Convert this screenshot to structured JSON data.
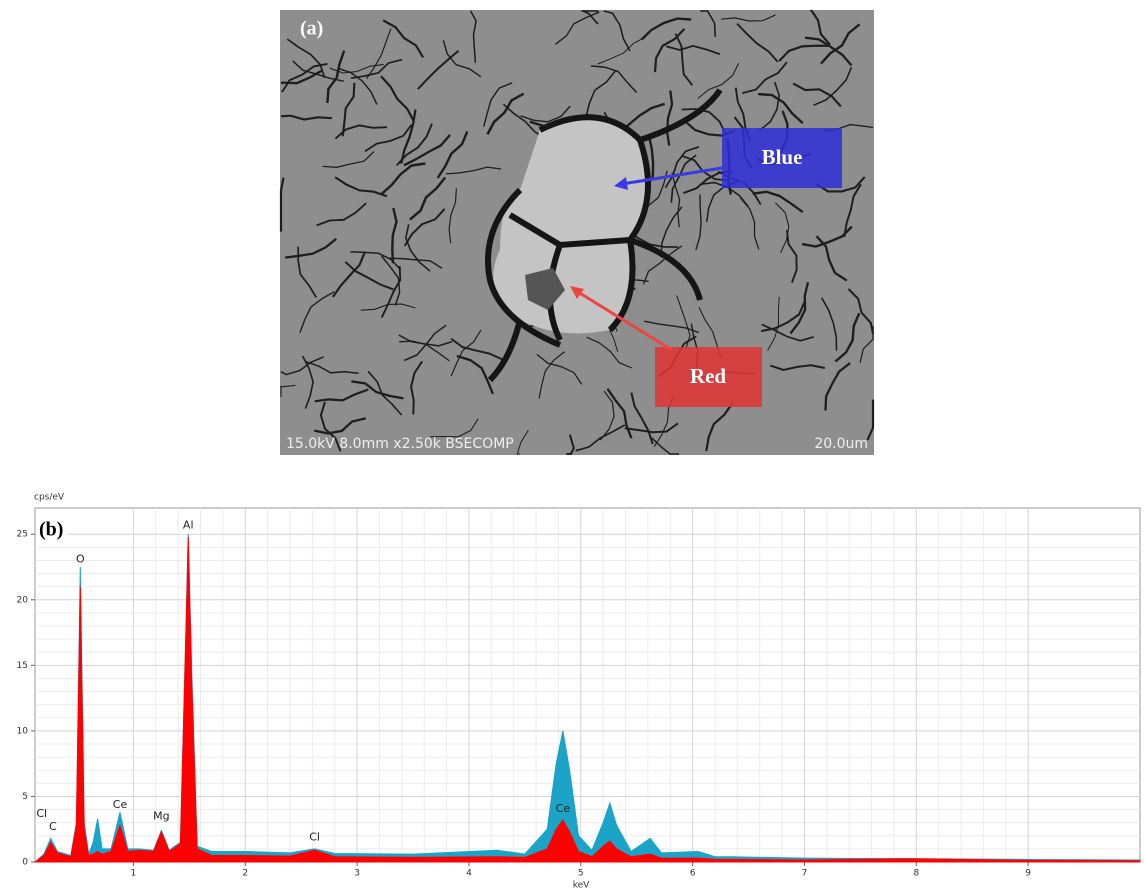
{
  "image_panel": {
    "label": "(a)",
    "caption": "15.0kV 8.0mm x2.50k BSECOMP",
    "scale_bar": "20.0um",
    "regions": [
      {
        "name": "Blue",
        "color": "#2e2ed8"
      },
      {
        "name": "Red",
        "color": "#e23232"
      }
    ]
  },
  "chart_data": {
    "type": "area",
    "panel_label": "(b)",
    "y_label": "cps/eV",
    "x_label": "keV",
    "x": [
      0.12,
      0.2,
      0.26,
      0.32,
      0.44,
      0.49,
      0.525,
      0.56,
      0.6,
      0.64,
      0.68,
      0.72,
      0.8,
      0.88,
      0.95,
      1.05,
      1.18,
      1.25,
      1.32,
      1.42,
      1.47,
      1.49,
      1.52,
      1.57,
      1.7,
      2,
      2.4,
      2.62,
      2.8,
      3.5,
      4.25,
      4.5,
      4.7,
      4.78,
      4.84,
      4.9,
      4.98,
      5.1,
      5.2,
      5.26,
      5.32,
      5.45,
      5.62,
      5.72,
      6.05,
      6.2,
      6.35,
      7,
      8,
      9,
      10
    ],
    "series": [
      {
        "color": "#1ba3c8",
        "values": [
          0,
          0.6,
          1.8,
          0.8,
          0.5,
          3,
          22.5,
          3,
          0.6,
          1.5,
          3.3,
          1,
          1,
          3.8,
          1,
          1,
          0.9,
          2.4,
          0.9,
          1.5,
          18,
          25,
          15,
          1.2,
          0.8,
          0.8,
          0.7,
          1,
          0.65,
          0.6,
          0.9,
          0.6,
          2.5,
          7.5,
          10,
          7,
          2,
          0.9,
          3,
          4.5,
          2.8,
          0.8,
          1.8,
          0.7,
          0.8,
          0.4,
          0.4,
          0.3,
          0.25,
          0.2,
          0.15
        ]
      },
      {
        "color": "#ff0000",
        "values": [
          0,
          0.5,
          1.5,
          0.7,
          0.4,
          2.8,
          21,
          2.5,
          0.5,
          0.6,
          0.8,
          0.6,
          0.8,
          2.8,
          0.8,
          0.9,
          0.8,
          2.3,
          0.8,
          1.4,
          17.5,
          24.8,
          14,
          1,
          0.5,
          0.5,
          0.45,
          0.9,
          0.4,
          0.35,
          0.4,
          0.35,
          1,
          2.5,
          3.2,
          2.3,
          0.8,
          0.4,
          1.2,
          1.6,
          1,
          0.4,
          0.6,
          0.3,
          0.3,
          0.2,
          0.2,
          0.15,
          0.25,
          0.12,
          0.1
        ]
      }
    ],
    "annotations": [
      {
        "text": "Cl",
        "x": 0.18,
        "y": 3.2
      },
      {
        "text": "C",
        "x": 0.28,
        "y": 2.2
      },
      {
        "text": "O",
        "x": 0.525,
        "y": 22.6
      },
      {
        "text": "Ce",
        "x": 0.88,
        "y": 3.9
      },
      {
        "text": "Mg",
        "x": 1.25,
        "y": 3.0
      },
      {
        "text": "Al",
        "x": 1.49,
        "y": 25.2
      },
      {
        "text": "Cl",
        "x": 2.62,
        "y": 1.4
      },
      {
        "text": "Ce",
        "x": 4.84,
        "y": 3.6
      }
    ],
    "xlim": [
      0.12,
      10
    ],
    "ylim": [
      0,
      27
    ],
    "xticks": [
      1,
      2,
      3,
      4,
      5,
      6,
      7,
      8,
      9
    ],
    "yticks": [
      0,
      5,
      10,
      15,
      20,
      25
    ],
    "grid": true
  }
}
